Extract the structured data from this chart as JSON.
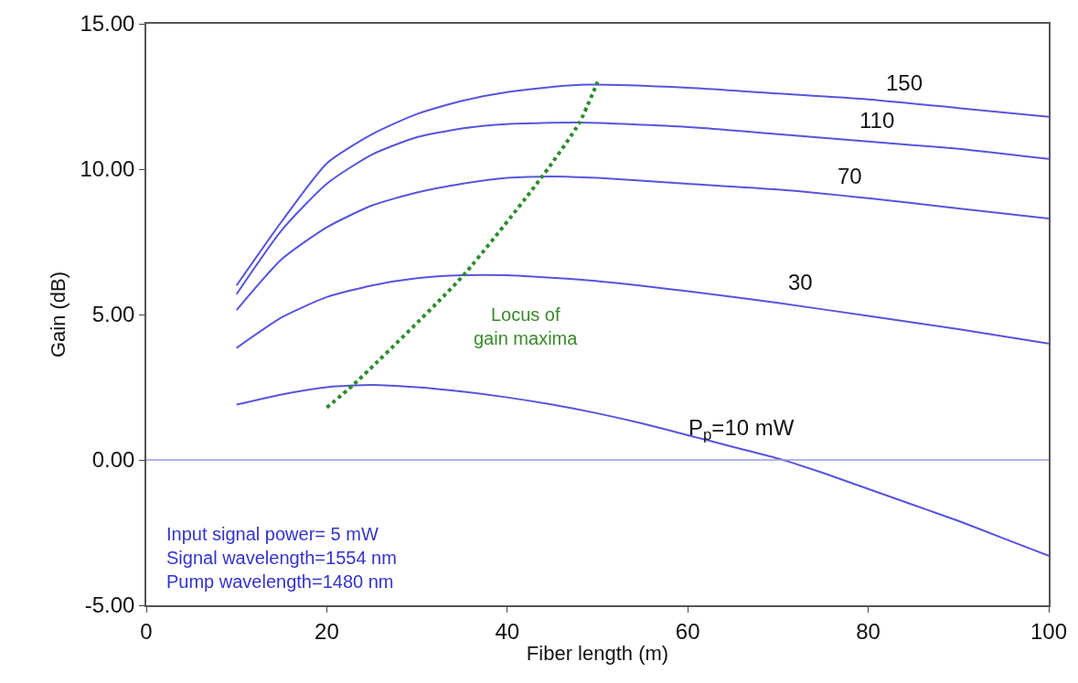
{
  "chart_data": {
    "type": "line",
    "xlabel": "Fiber length (m)",
    "ylabel": "Gain (dB)",
    "xlim": [
      0,
      100
    ],
    "xticks": [
      0,
      20,
      40,
      60,
      80,
      100
    ],
    "ylim": [
      -5,
      15
    ],
    "yticks": [
      {
        "value": -5,
        "label": "-5.00"
      },
      {
        "value": 0,
        "label": "0.00"
      },
      {
        "value": 5,
        "label": "5.00"
      },
      {
        "value": 10,
        "label": "10.00"
      },
      {
        "value": 15,
        "label": "15.00"
      }
    ],
    "legend": false,
    "marker": "none",
    "ref_lines": [
      {
        "axis": "y",
        "value": 0,
        "color": "#9999dd"
      }
    ],
    "series": [
      {
        "name": "150",
        "color": "#5555dd",
        "x": [
          10,
          15,
          20,
          25,
          30,
          35,
          40,
          48,
          60,
          70,
          80,
          90,
          100
        ],
        "values": [
          6.0,
          8.2,
          10.2,
          11.2,
          11.9,
          12.35,
          12.65,
          12.9,
          12.8,
          12.6,
          12.4,
          12.1,
          11.8
        ]
      },
      {
        "name": "110",
        "color": "#5555dd",
        "x": [
          10,
          15,
          20,
          25,
          30,
          35,
          40,
          48,
          60,
          70,
          80,
          90,
          100
        ],
        "values": [
          5.7,
          7.9,
          9.5,
          10.5,
          11.1,
          11.4,
          11.55,
          11.6,
          11.45,
          11.2,
          10.95,
          10.7,
          10.35
        ]
      },
      {
        "name": "70",
        "color": "#5555dd",
        "x": [
          10,
          15,
          20,
          25,
          30,
          35,
          40,
          45,
          50,
          60,
          70,
          80,
          90,
          100
        ],
        "values": [
          5.15,
          6.9,
          8.0,
          8.75,
          9.2,
          9.5,
          9.7,
          9.75,
          9.7,
          9.5,
          9.3,
          9.0,
          8.65,
          8.3
        ]
      },
      {
        "name": "30",
        "color": "#5555dd",
        "x": [
          10,
          15,
          20,
          25,
          30,
          35,
          40,
          50,
          60,
          70,
          80,
          90,
          100
        ],
        "values": [
          3.85,
          4.9,
          5.6,
          6.0,
          6.25,
          6.35,
          6.35,
          6.15,
          5.8,
          5.4,
          4.95,
          4.5,
          4.0
        ]
      },
      {
        "name": "P$_{p}$=10 mW",
        "color": "#5555dd",
        "x": [
          10,
          15,
          20,
          25,
          30,
          35,
          40,
          45,
          50,
          55,
          60,
          65,
          70,
          75,
          80,
          85,
          90,
          95,
          100
        ],
        "values": [
          1.9,
          2.25,
          2.5,
          2.58,
          2.5,
          2.35,
          2.15,
          1.9,
          1.6,
          1.25,
          0.85,
          0.45,
          0.05,
          -0.45,
          -1.0,
          -1.55,
          -2.1,
          -2.7,
          -3.3
        ]
      },
      {
        "color": "#2e8b2e",
        "line_style": "dotted",
        "x": [
          20,
          23,
          35,
          44,
          48,
          50
        ],
        "values": [
          1.8,
          2.6,
          6.3,
          9.8,
          11.6,
          13.0
        ]
      }
    ],
    "annotations": [
      "Locus of\ngain maxima",
      "Input signal power= 5 mW\nSignal wavelength=1554 nm\nPump wavelength=1480 nm"
    ]
  }
}
